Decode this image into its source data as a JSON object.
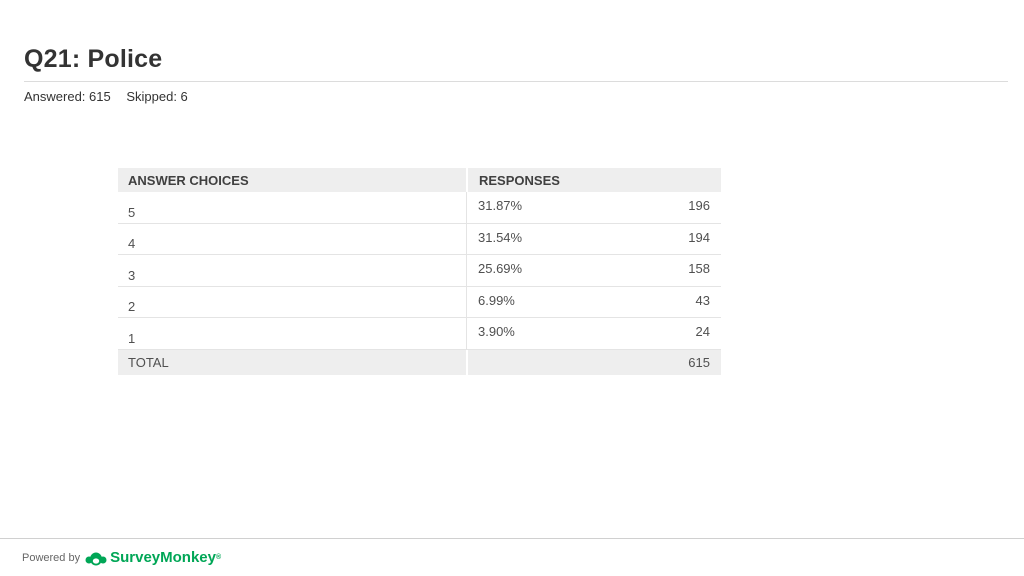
{
  "page": {
    "title": "Q21: Police",
    "answered": "Answered: 615",
    "skipped": "Skipped: 6"
  },
  "table": {
    "col_choices": "ANSWER CHOICES",
    "col_responses": "RESPONSES",
    "total_label": "TOTAL",
    "total_value": "615"
  },
  "chart_data": {
    "type": "table",
    "columns": [
      "ANSWER CHOICES",
      "RESPONSES"
    ],
    "rows": [
      {
        "choice": "5",
        "percent": "31.87%",
        "count": "196"
      },
      {
        "choice": "4",
        "percent": "31.54%",
        "count": "194"
      },
      {
        "choice": "3",
        "percent": "25.69%",
        "count": "158"
      },
      {
        "choice": "2",
        "percent": "6.99%",
        "count": "43"
      },
      {
        "choice": "1",
        "percent": "3.90%",
        "count": "24"
      }
    ],
    "total": "615"
  },
  "footer": {
    "powered_by": "Powered by",
    "brand": "SurveyMonkey",
    "brand_color": "#00a656",
    "logo_icon": "surveymonkey-logo-icon"
  }
}
